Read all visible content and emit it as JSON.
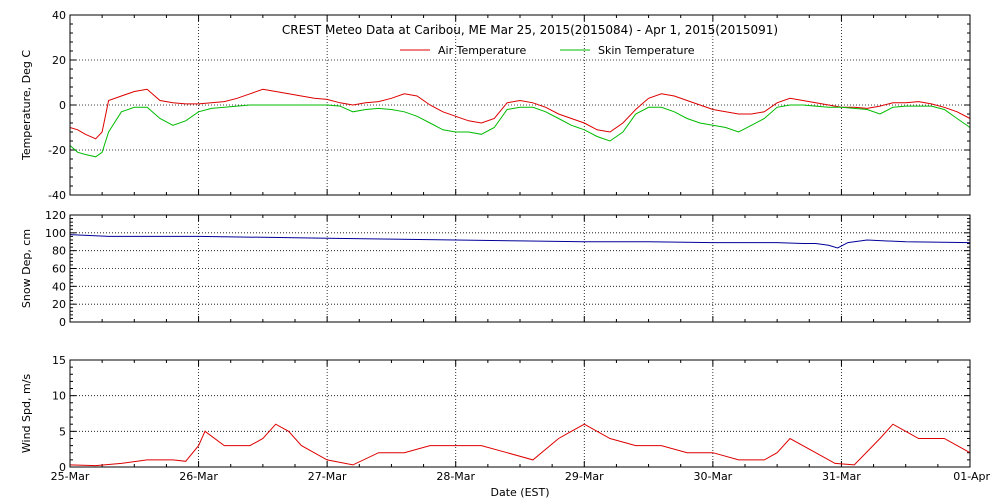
{
  "chart_data": {
    "title": "CREST Meteo Data at Caribou, ME   Mar 25, 2015(2015084) - Apr  1, 2015(2015091)",
    "xlabel": "Date (EST)",
    "x_ticks": [
      "25-Mar",
      "26-Mar",
      "27-Mar",
      "28-Mar",
      "29-Mar",
      "30-Mar",
      "31-Mar",
      "01-Apr"
    ],
    "x_unit": "days since 25-Mar 00:00",
    "grid": true,
    "panels": [
      {
        "type": "line",
        "ylabel": "Temperature, Deg C",
        "ylim": [
          -40,
          40
        ],
        "yticks": [
          -40,
          -20,
          0,
          20,
          40
        ],
        "legend": "top-center",
        "series": [
          {
            "name": "Air Temperature",
            "color": "#dd0000",
            "x": [
              0.0,
              0.06,
              0.12,
              0.2,
              0.25,
              0.3,
              0.4,
              0.5,
              0.6,
              0.7,
              0.8,
              0.9,
              1.0,
              1.1,
              1.2,
              1.3,
              1.4,
              1.5,
              1.6,
              1.7,
              1.8,
              1.9,
              2.0,
              2.1,
              2.2,
              2.3,
              2.4,
              2.5,
              2.6,
              2.7,
              2.8,
              2.9,
              3.0,
              3.1,
              3.2,
              3.3,
              3.4,
              3.5,
              3.6,
              3.7,
              3.8,
              3.9,
              4.0,
              4.1,
              4.2,
              4.3,
              4.4,
              4.5,
              4.6,
              4.7,
              4.8,
              4.9,
              5.0,
              5.1,
              5.2,
              5.3,
              5.4,
              5.5,
              5.6,
              5.7,
              5.8,
              5.9,
              6.0,
              6.1,
              6.2,
              6.3,
              6.4,
              6.5,
              6.6,
              6.7,
              6.8,
              6.9,
              7.0
            ],
            "y": [
              -10,
              -11,
              -13,
              -15,
              -12,
              2,
              4,
              6,
              7,
              2,
              1,
              0.5,
              0.5,
              1,
              1.5,
              3,
              5,
              7,
              6,
              5,
              4,
              3,
              2.5,
              1,
              0,
              1,
              1.5,
              3,
              5,
              4,
              0,
              -3,
              -5,
              -7,
              -8,
              -6,
              1,
              2,
              1,
              -1,
              -4,
              -6,
              -8,
              -11,
              -12,
              -8,
              -2,
              3,
              5,
              4,
              2,
              0,
              -2,
              -3,
              -4,
              -4,
              -3,
              1,
              3,
              2,
              1,
              0,
              -1,
              -1,
              -1.5,
              -0.5,
              1,
              1,
              1.5,
              0.5,
              -1,
              -3,
              -6
            ]
          },
          {
            "name": "Skin Temperature",
            "color": "#00bb00",
            "x": [
              0.0,
              0.06,
              0.12,
              0.2,
              0.25,
              0.3,
              0.4,
              0.5,
              0.6,
              0.7,
              0.8,
              0.9,
              1.0,
              1.1,
              1.2,
              1.3,
              1.4,
              1.5,
              1.6,
              1.7,
              1.8,
              1.9,
              2.0,
              2.1,
              2.2,
              2.3,
              2.4,
              2.5,
              2.6,
              2.7,
              2.8,
              2.9,
              3.0,
              3.1,
              3.2,
              3.3,
              3.4,
              3.5,
              3.6,
              3.7,
              3.8,
              3.9,
              4.0,
              4.1,
              4.2,
              4.3,
              4.4,
              4.5,
              4.6,
              4.7,
              4.8,
              4.9,
              5.0,
              5.1,
              5.2,
              5.3,
              5.4,
              5.5,
              5.6,
              5.7,
              5.8,
              5.9,
              6.0,
              6.1,
              6.2,
              6.3,
              6.4,
              6.5,
              6.6,
              6.7,
              6.8,
              6.9,
              7.0
            ],
            "y": [
              -18,
              -21,
              -22,
              -23,
              -21,
              -12,
              -3,
              -1,
              -1,
              -6,
              -9,
              -7,
              -3,
              -1.5,
              -1,
              -0.5,
              0,
              0,
              0,
              0,
              0,
              0,
              0,
              -0.5,
              -3,
              -2,
              -1.5,
              -2,
              -3,
              -5,
              -8,
              -11,
              -12,
              -12,
              -13,
              -10,
              -2,
              -1,
              -1,
              -3,
              -6,
              -9,
              -11,
              -14,
              -16,
              -12,
              -4,
              -1,
              -1,
              -3,
              -6,
              -8,
              -9,
              -10,
              -12,
              -9,
              -6,
              -1,
              0,
              0,
              -0.5,
              -1,
              -1,
              -1.5,
              -2,
              -4,
              -1,
              -0.5,
              -0.5,
              -0.5,
              -2,
              -6,
              -10
            ]
          }
        ]
      },
      {
        "type": "line",
        "ylabel": "Snow Dep, cm",
        "ylim": [
          0,
          120
        ],
        "yticks": [
          0,
          20,
          40,
          60,
          80,
          100,
          120
        ],
        "series": [
          {
            "name": "",
            "color": "#000099",
            "x": [
              0.0,
              0.3,
              0.5,
              1.0,
              1.5,
              2.0,
              2.5,
              3.0,
              3.5,
              4.0,
              4.5,
              5.0,
              5.5,
              5.7,
              5.8,
              5.9,
              5.97,
              6.05,
              6.2,
              6.5,
              7.0
            ],
            "y": [
              98,
              96,
              96,
              96,
              95,
              94,
              93,
              92,
              91,
              90,
              90,
              89,
              89,
              88,
              88,
              86,
              83,
              89,
              92,
              90,
              89
            ]
          }
        ]
      },
      {
        "type": "line",
        "ylabel": "Wind Spd, m/s",
        "ylim": [
          0,
          15
        ],
        "yticks": [
          0,
          5,
          10,
          15
        ],
        "series": [
          {
            "name": "",
            "color": "#dd0000",
            "x": [
              0.0,
              0.2,
              0.4,
              0.6,
              0.8,
              0.9,
              1.0,
              1.05,
              1.2,
              1.4,
              1.5,
              1.6,
              1.7,
              1.8,
              2.0,
              2.2,
              2.4,
              2.6,
              2.8,
              3.0,
              3.2,
              3.4,
              3.6,
              3.8,
              3.9,
              4.0,
              4.2,
              4.4,
              4.6,
              4.8,
              5.0,
              5.2,
              5.4,
              5.5,
              5.6,
              5.8,
              5.95,
              6.1,
              6.3,
              6.4,
              6.5,
              6.6,
              6.8,
              6.9,
              7.0
            ],
            "y": [
              0.3,
              0.2,
              0.5,
              1,
              1,
              0.8,
              3,
              5,
              3,
              3,
              4,
              6,
              5,
              3,
              1,
              0.3,
              2,
              2,
              3,
              3,
              3,
              2,
              1,
              4,
              5,
              6,
              4,
              3,
              3,
              2,
              2,
              1,
              1,
              2,
              4,
              2,
              0.5,
              0.3,
              4,
              6,
              5,
              4,
              4,
              3,
              2
            ]
          }
        ]
      }
    ]
  }
}
